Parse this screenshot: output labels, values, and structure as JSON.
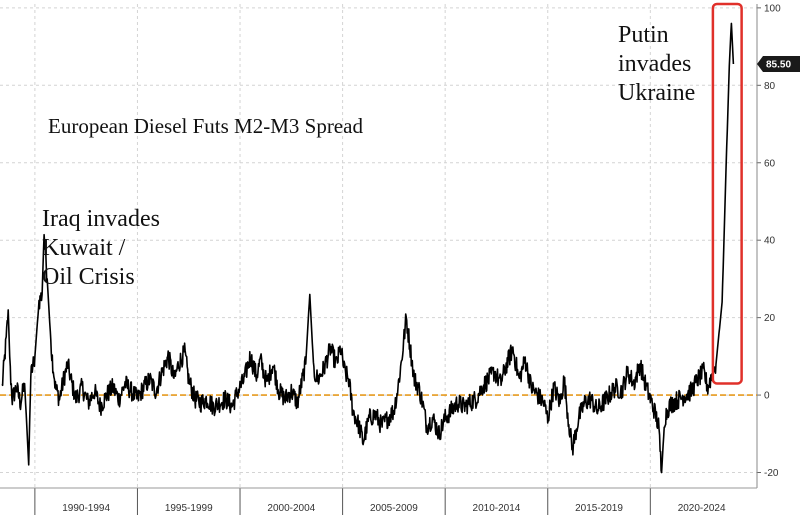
{
  "chart_data": {
    "type": "line",
    "title": "European Diesel Futs M2-M3 Spread",
    "xlabel": "",
    "ylabel": "",
    "x_range": [
      1988.3,
      2025.2
    ],
    "ylim": [
      -24,
      101
    ],
    "y_ticks": [
      -20,
      0,
      20,
      40,
      60,
      80,
      100
    ],
    "x_tick_labels": [
      {
        "label": "1990-1994",
        "center": 1992.5
      },
      {
        "label": "1995-1999",
        "center": 1997.5
      },
      {
        "label": "2000-2004",
        "center": 2002.5
      },
      {
        "label": "2005-2009",
        "center": 2007.5
      },
      {
        "label": "2010-2014",
        "center": 2012.5
      },
      {
        "label": "2015-2019",
        "center": 2017.5
      },
      {
        "label": "2020-2024",
        "center": 2022.5
      }
    ],
    "x_boundaries": [
      1990,
      1995,
      2000,
      2005,
      2010,
      2015,
      2020
    ],
    "grid": true,
    "zero_line": true,
    "last_value": {
      "label": "85.50",
      "value": 85.5
    },
    "series": [
      {
        "color": "#000000",
        "points": [
          [
            1988.4,
            2
          ],
          [
            1988.6,
            14
          ],
          [
            1988.7,
            22
          ],
          [
            1988.8,
            6
          ],
          [
            1988.9,
            -1
          ],
          [
            1989.1,
            2
          ],
          [
            1989.3,
            -2
          ],
          [
            1989.5,
            3
          ],
          [
            1989.7,
            -18
          ],
          [
            1989.8,
            5
          ],
          [
            1990.0,
            10
          ],
          [
            1990.2,
            24
          ],
          [
            1990.35,
            26
          ],
          [
            1990.45,
            42
          ],
          [
            1990.6,
            30
          ],
          [
            1990.8,
            12
          ],
          [
            1991.0,
            2
          ],
          [
            1991.2,
            -1
          ],
          [
            1991.4,
            4
          ],
          [
            1991.6,
            8
          ],
          [
            1991.8,
            3
          ],
          [
            1992.0,
            -1
          ],
          [
            1992.3,
            2
          ],
          [
            1992.6,
            -2
          ],
          [
            1992.9,
            1
          ],
          [
            1993.2,
            -3
          ],
          [
            1993.5,
            0
          ],
          [
            1993.8,
            2
          ],
          [
            1994.1,
            -1
          ],
          [
            1994.4,
            3
          ],
          [
            1994.7,
            1
          ],
          [
            1995.0,
            -1
          ],
          [
            1995.3,
            2
          ],
          [
            1995.6,
            4
          ],
          [
            1995.9,
            1
          ],
          [
            1996.2,
            6
          ],
          [
            1996.5,
            10
          ],
          [
            1996.8,
            4
          ],
          [
            1997.0,
            8
          ],
          [
            1997.3,
            11
          ],
          [
            1997.5,
            4
          ],
          [
            1997.8,
            -1
          ],
          [
            1998.1,
            -2
          ],
          [
            1998.4,
            -1
          ],
          [
            1998.7,
            -3
          ],
          [
            1999.0,
            -2
          ],
          [
            1999.3,
            -1
          ],
          [
            1999.6,
            -3
          ],
          [
            1999.9,
            1
          ],
          [
            2000.2,
            4
          ],
          [
            2000.5,
            10
          ],
          [
            2000.8,
            5
          ],
          [
            2001.0,
            9
          ],
          [
            2001.3,
            3
          ],
          [
            2001.6,
            8
          ],
          [
            2001.9,
            1
          ],
          [
            2002.2,
            -1
          ],
          [
            2002.5,
            1
          ],
          [
            2002.8,
            -2
          ],
          [
            2003.0,
            3
          ],
          [
            2003.2,
            8
          ],
          [
            2003.4,
            26
          ],
          [
            2003.6,
            6
          ],
          [
            2003.8,
            4
          ],
          [
            2004.1,
            7
          ],
          [
            2004.4,
            12
          ],
          [
            2004.7,
            8
          ],
          [
            2004.9,
            12
          ],
          [
            2005.1,
            6
          ],
          [
            2005.3,
            4
          ],
          [
            2005.5,
            -4
          ],
          [
            2005.8,
            -8
          ],
          [
            2006.0,
            -12
          ],
          [
            2006.3,
            -6
          ],
          [
            2006.6,
            -5
          ],
          [
            2006.9,
            -8
          ],
          [
            2007.2,
            -6
          ],
          [
            2007.5,
            -4
          ],
          [
            2007.7,
            2
          ],
          [
            2007.9,
            10
          ],
          [
            2008.1,
            20
          ],
          [
            2008.3,
            12
          ],
          [
            2008.5,
            4
          ],
          [
            2008.7,
            2
          ],
          [
            2008.9,
            -2
          ],
          [
            2009.1,
            -8
          ],
          [
            2009.4,
            -6
          ],
          [
            2009.7,
            -10
          ],
          [
            2010.0,
            -6
          ],
          [
            2010.3,
            -4
          ],
          [
            2010.6,
            -2
          ],
          [
            2010.9,
            -3
          ],
          [
            2011.2,
            -2
          ],
          [
            2011.5,
            -1
          ],
          [
            2011.8,
            2
          ],
          [
            2012.1,
            4
          ],
          [
            2012.4,
            6
          ],
          [
            2012.7,
            3
          ],
          [
            2013.0,
            8
          ],
          [
            2013.3,
            12
          ],
          [
            2013.6,
            4
          ],
          [
            2013.9,
            9
          ],
          [
            2014.2,
            2
          ],
          [
            2014.5,
            0
          ],
          [
            2014.8,
            -2
          ],
          [
            2015.0,
            -6
          ],
          [
            2015.3,
            2
          ],
          [
            2015.6,
            -2
          ],
          [
            2015.8,
            4
          ],
          [
            2016.0,
            -6
          ],
          [
            2016.2,
            -14
          ],
          [
            2016.5,
            -6
          ],
          [
            2016.8,
            -2
          ],
          [
            2017.1,
            -1
          ],
          [
            2017.4,
            -4
          ],
          [
            2017.7,
            -2
          ],
          [
            2018.0,
            0
          ],
          [
            2018.3,
            2
          ],
          [
            2018.6,
            1
          ],
          [
            2018.9,
            6
          ],
          [
            2019.2,
            3
          ],
          [
            2019.5,
            8
          ],
          [
            2019.8,
            2
          ],
          [
            2020.0,
            -1
          ],
          [
            2020.2,
            -4
          ],
          [
            2020.4,
            -8
          ],
          [
            2020.55,
            -20
          ],
          [
            2020.7,
            -6
          ],
          [
            2020.9,
            -3
          ],
          [
            2021.1,
            -2
          ],
          [
            2021.4,
            -1
          ],
          [
            2021.7,
            0
          ],
          [
            2022.0,
            1
          ],
          [
            2022.3,
            4
          ],
          [
            2022.6,
            6
          ],
          [
            2022.8,
            2
          ],
          [
            2023.0,
            5
          ],
          [
            2023.2,
            8
          ],
          [
            2023.5,
            24
          ],
          [
            2023.7,
            60
          ],
          [
            2023.85,
            85
          ],
          [
            2023.95,
            96
          ],
          [
            2024.05,
            85.5
          ]
        ]
      }
    ],
    "annotations": [
      {
        "lines": [
          "Iraq invades",
          "Kuwait /",
          "Oil Crisis"
        ]
      },
      {
        "lines": [
          "Putin",
          "invades",
          "Ukraine"
        ]
      }
    ],
    "highlight": {
      "x_from": 2023.05,
      "x_to": 2024.45,
      "y_from": 3,
      "y_to": 101
    },
    "colors": {
      "line": "#000000",
      "zero_line": "#e69a1f",
      "grid": "#d4d4d4",
      "highlight": "#e0302a",
      "last_value_bg": "#1a1a1a"
    }
  }
}
